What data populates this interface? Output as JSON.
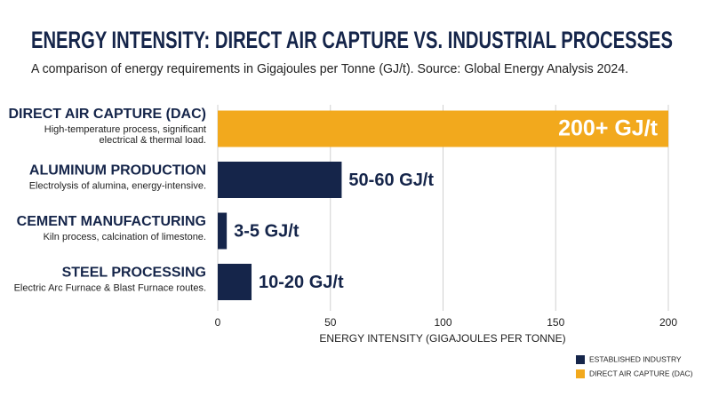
{
  "chart_data": {
    "type": "bar",
    "orientation": "horizontal",
    "title": "ENERGY INTENSITY: DIRECT AIR CAPTURE VS. INDUSTRIAL PROCESSES",
    "subtitle": "A comparison of energy requirements in Gigajoules per Tonne (GJ/t). Source: Global Energy Analysis 2024.",
    "categories": [
      "DIRECT AIR CAPTURE (DAC)",
      "ALUMINUM PRODUCTION",
      "CEMENT MANUFACTURING",
      "STEEL PROCESSING"
    ],
    "descriptions": [
      [
        "High-temperature process, significant",
        "electrical & thermal load."
      ],
      [
        "Electrolysis of alumina, energy-intensive."
      ],
      [
        "Kiln process, calcination of limestone."
      ],
      [
        "Electric Arc Furnace & Blast Furnace routes."
      ]
    ],
    "series": [
      {
        "name": "ESTABLISHED INDUSTRY",
        "color": "#15254a",
        "values": [
          null,
          55,
          4,
          15
        ],
        "value_labels": [
          null,
          "50-60 GJ/t",
          "3-5 GJ/t",
          "10-20 GJ/t"
        ]
      },
      {
        "name": "DIRECT AIR CAPTURE (DAC)",
        "color": "#f2a91d",
        "values": [
          200,
          null,
          null,
          null
        ],
        "value_labels": [
          "200+ GJ/t",
          null,
          null,
          null
        ]
      }
    ],
    "xlabel": "ENERGY INTENSITY (GIGAJOULES PER TONNE)",
    "xlim": [
      0,
      200
    ],
    "xticks": [
      0,
      50,
      100,
      150,
      200
    ],
    "grid": true,
    "legend": "bottom-right"
  }
}
